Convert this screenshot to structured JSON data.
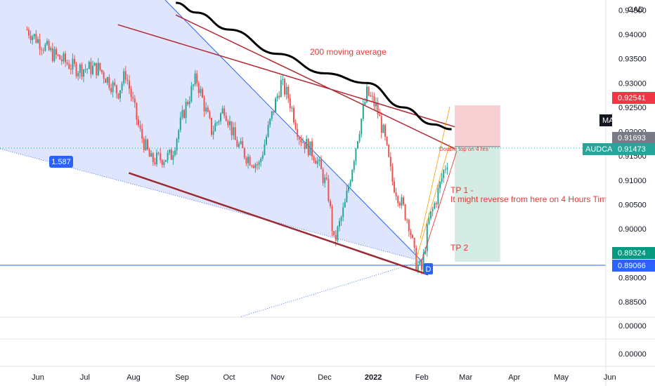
{
  "chart_data": {
    "type": "candlestick",
    "symbol": "AUDCAD",
    "currency": "CAD",
    "x_ticks": [
      "Jun",
      "Jul",
      "Aug",
      "Sep",
      "Oct",
      "Nov",
      "Dec",
      "2022",
      "Feb",
      "Mar",
      "Apr",
      "May",
      "Jun"
    ],
    "y_ticks": [
      "0.94500",
      "0.94000",
      "0.93500",
      "0.93000",
      "0.92500",
      "0.92000",
      "0.91500",
      "0.91000",
      "0.90500",
      "0.90000",
      "0.89500",
      "0.89000",
      "0.88500"
    ],
    "y_range": [
      0.8818,
      0.9465
    ],
    "price_badges": {
      "stop_loss": "0.92541",
      "entry": "0.91693",
      "current": "0.91473",
      "target": "0.89324",
      "support": "0.89066"
    },
    "current_label": "AUDCAD",
    "ma_label": "MA",
    "indicator_ticks": [
      "0.00000",
      "0.00000"
    ],
    "annotations": {
      "moving_average": "200 moving average",
      "fib_level": "1.587",
      "double_top": "Double top on 4 hrs",
      "tp1_line1": "TP 1 -",
      "tp1_line2": "It might reverse from here on 4 Hours Time frame",
      "tp2": "TP 2",
      "point_d": "D"
    },
    "anchor_prices": [
      [
        "2021-05-25",
        0.941
      ],
      [
        "2021-06-10",
        0.936
      ],
      [
        "2021-06-25",
        0.933
      ],
      [
        "2021-07-10",
        0.933
      ],
      [
        "2021-07-22",
        0.928
      ],
      [
        "2021-07-27",
        0.932
      ],
      [
        "2021-08-05",
        0.92
      ],
      [
        "2021-08-12",
        0.914
      ],
      [
        "2021-08-25",
        0.915
      ],
      [
        "2021-09-03",
        0.925
      ],
      [
        "2021-09-10",
        0.931
      ],
      [
        "2021-09-20",
        0.92
      ],
      [
        "2021-09-28",
        0.925
      ],
      [
        "2021-10-05",
        0.918
      ],
      [
        "2021-10-12",
        0.915
      ],
      [
        "2021-10-20",
        0.913
      ],
      [
        "2021-10-28",
        0.923
      ],
      [
        "2021-11-03",
        0.93
      ],
      [
        "2021-11-08",
        0.927
      ],
      [
        "2021-11-15",
        0.919
      ],
      [
        "2021-11-25",
        0.915
      ],
      [
        "2021-12-03",
        0.908
      ],
      [
        "2021-12-07",
        0.897
      ],
      [
        "2021-12-14",
        0.905
      ],
      [
        "2021-12-22",
        0.919
      ],
      [
        "2021-12-28",
        0.928
      ],
      [
        "2022-01-03",
        0.925
      ],
      [
        "2022-01-08",
        0.919
      ],
      [
        "2022-01-13",
        0.91
      ],
      [
        "2022-01-18",
        0.906
      ],
      [
        "2022-01-24",
        0.901
      ],
      [
        "2022-01-28",
        0.893
      ],
      [
        "2022-02-01",
        0.8915
      ],
      [
        "2022-02-05",
        0.901
      ],
      [
        "2022-02-10",
        0.906
      ],
      [
        "2022-02-15",
        0.912
      ],
      [
        "2022-02-18",
        0.9147
      ]
    ],
    "moving_average": [
      [
        "2021-08-28",
        0.9465
      ],
      [
        "2021-09-10",
        0.9445
      ],
      [
        "2021-10-01",
        0.941
      ],
      [
        "2021-11-01",
        0.936
      ],
      [
        "2021-12-01",
        0.932
      ],
      [
        "2021-12-28",
        0.93
      ],
      [
        "2022-01-20",
        0.925
      ],
      [
        "2022-02-08",
        0.9215
      ],
      [
        "2022-02-20",
        0.9205
      ]
    ],
    "trendlines": [
      {
        "from": [
          "2021-07-22",
          0.942
        ],
        "to": [
          "2022-02-22",
          0.921
        ],
        "color": "#b22833"
      },
      {
        "from": [
          "2021-08-28",
          0.944
        ],
        "to": [
          "2022-02-22",
          0.9165
        ],
        "color": "#b22833"
      },
      {
        "from": [
          "2021-07-29",
          0.9115
        ],
        "to": [
          "2022-02-05",
          0.8906
        ],
        "color": "#9c2a33"
      }
    ],
    "position": {
      "start": "2022-02-22",
      "end": "2022-03-23",
      "stop_loss": 0.92541,
      "entry": 0.91693,
      "target": 0.89324
    },
    "ylabel": "",
    "xlabel": "",
    "grid": false
  }
}
